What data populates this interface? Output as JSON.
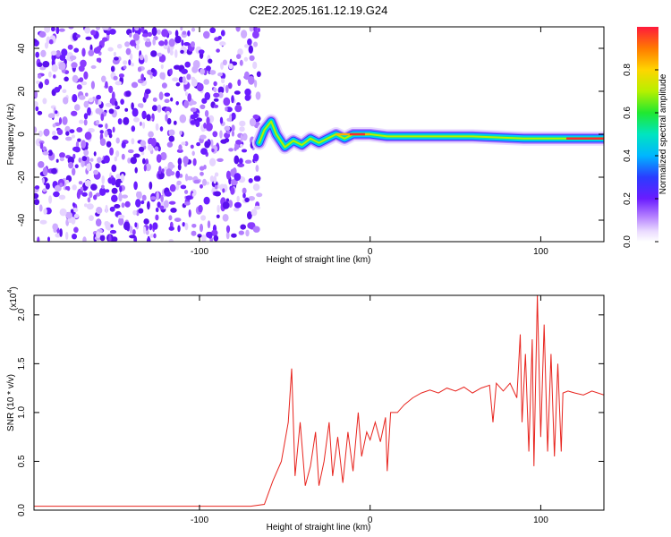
{
  "figure": {
    "title": "C2E2.2025.161.12.19.G24"
  },
  "chart_data": [
    {
      "type": "heatmap",
      "xlabel": "Height of straight line (km)",
      "ylabel": "Frequency (Hz)",
      "xlim": [
        -197,
        137
      ],
      "ylim": [
        -50,
        50
      ],
      "xticks": [
        -100,
        0,
        100
      ],
      "yticks": [
        -40,
        -20,
        0,
        20,
        40
      ],
      "noise_region_x": [
        -197,
        -65
      ],
      "signal_track": [
        {
          "x": -65,
          "y": -4
        },
        {
          "x": -62,
          "y": 2
        },
        {
          "x": -58,
          "y": 6
        },
        {
          "x": -55,
          "y": 0
        },
        {
          "x": -50,
          "y": -6
        },
        {
          "x": -45,
          "y": -3
        },
        {
          "x": -40,
          "y": -5
        },
        {
          "x": -35,
          "y": -2
        },
        {
          "x": -30,
          "y": -4
        },
        {
          "x": -25,
          "y": -2
        },
        {
          "x": -20,
          "y": 0
        },
        {
          "x": -15,
          "y": -2
        },
        {
          "x": -10,
          "y": 0
        },
        {
          "x": 0,
          "y": 0
        },
        {
          "x": 10,
          "y": -1
        },
        {
          "x": 30,
          "y": -1
        },
        {
          "x": 60,
          "y": -1
        },
        {
          "x": 90,
          "y": -2
        },
        {
          "x": 110,
          "y": -2
        },
        {
          "x": 137,
          "y": -2
        }
      ],
      "colorbar": {
        "label": "Normalized spectral amplitude",
        "range": [
          0,
          1
        ],
        "ticks": [
          "0.0",
          "0.2",
          "0.4",
          "0.6",
          "0.8"
        ]
      }
    },
    {
      "type": "line",
      "xlabel": "Height of straight line (km)",
      "ylabel": "SNR (10 * v/v)",
      "multiplier": "(x10",
      "multiplier_exp": "4",
      "multiplier_close": ")",
      "xlim": [
        -197,
        137
      ],
      "ylim": [
        0,
        2.2
      ],
      "xticks": [
        -100,
        0,
        100
      ],
      "yticks": [
        "0.0",
        "0.5",
        "1.0",
        "1.5",
        "2.0"
      ],
      "series": [
        {
          "color": "#e8241e",
          "points": [
            [
              -197,
              0.04
            ],
            [
              -150,
              0.04
            ],
            [
              -100,
              0.04
            ],
            [
              -70,
              0.04
            ],
            [
              -62,
              0.06
            ],
            [
              -57,
              0.3
            ],
            [
              -52,
              0.5
            ],
            [
              -48,
              0.9
            ],
            [
              -46,
              1.45
            ],
            [
              -44,
              0.35
            ],
            [
              -41,
              0.9
            ],
            [
              -38,
              0.25
            ],
            [
              -35,
              0.45
            ],
            [
              -32,
              0.8
            ],
            [
              -30,
              0.25
            ],
            [
              -27,
              0.5
            ],
            [
              -24,
              0.9
            ],
            [
              -22,
              0.35
            ],
            [
              -19,
              0.75
            ],
            [
              -16,
              0.28
            ],
            [
              -13,
              0.8
            ],
            [
              -10,
              0.4
            ],
            [
              -7,
              1.0
            ],
            [
              -5,
              0.55
            ],
            [
              -2,
              0.8
            ],
            [
              0,
              0.72
            ],
            [
              3,
              0.9
            ],
            [
              6,
              0.7
            ],
            [
              9,
              0.95
            ],
            [
              10,
              0.4
            ],
            [
              12,
              1.0
            ],
            [
              16,
              1.0
            ],
            [
              20,
              1.08
            ],
            [
              25,
              1.15
            ],
            [
              30,
              1.2
            ],
            [
              35,
              1.23
            ],
            [
              40,
              1.2
            ],
            [
              45,
              1.25
            ],
            [
              50,
              1.22
            ],
            [
              55,
              1.26
            ],
            [
              60,
              1.2
            ],
            [
              65,
              1.25
            ],
            [
              70,
              1.28
            ],
            [
              72,
              0.9
            ],
            [
              74,
              1.3
            ],
            [
              78,
              1.22
            ],
            [
              82,
              1.3
            ],
            [
              86,
              1.15
            ],
            [
              88,
              1.8
            ],
            [
              89,
              0.9
            ],
            [
              91,
              1.6
            ],
            [
              93,
              0.6
            ],
            [
              95,
              1.75
            ],
            [
              96,
              0.45
            ],
            [
              98,
              2.2
            ],
            [
              100,
              0.75
            ],
            [
              102,
              1.9
            ],
            [
              104,
              0.6
            ],
            [
              106,
              1.6
            ],
            [
              108,
              0.55
            ],
            [
              110,
              1.5
            ],
            [
              112,
              0.6
            ],
            [
              113,
              1.2
            ],
            [
              116,
              1.22
            ],
            [
              120,
              1.2
            ],
            [
              125,
              1.18
            ],
            [
              130,
              1.22
            ],
            [
              137,
              1.18
            ]
          ]
        }
      ]
    }
  ]
}
